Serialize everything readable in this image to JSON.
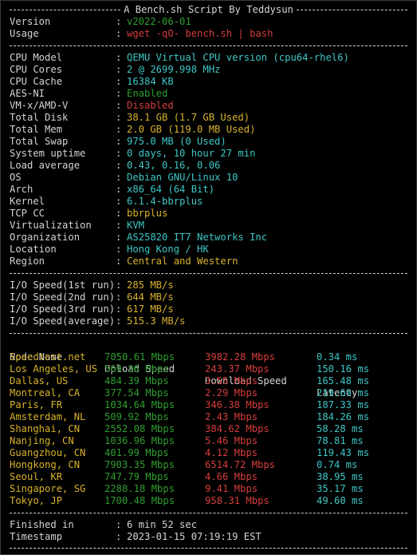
{
  "header": {
    "title": "A Bench.sh Script By Teddysun",
    "version_key": "Version",
    "version_val": "v2022-06-01",
    "usage_key": "Usage",
    "usage_val": "wget -qO- bench.sh | bash"
  },
  "system": [
    {
      "key": "CPU Model",
      "val": "QEMU Virtual CPU version (cpu64-rhel6)",
      "color": "cyan"
    },
    {
      "key": "CPU Cores",
      "val": "2 @ 2699.998 MHz",
      "color": "cyan"
    },
    {
      "key": "CPU Cache",
      "val": "16384 KB",
      "color": "cyan"
    },
    {
      "key": "AES-NI",
      "val": "Enabled",
      "color": "green"
    },
    {
      "key": "VM-x/AMD-V",
      "val": "Disabled",
      "color": "red"
    },
    {
      "key": "Total Disk",
      "val": "38.1 GB (1.7 GB Used)",
      "color": "yellow"
    },
    {
      "key": "Total Mem",
      "val": "2.0 GB (119.0 MB Used)",
      "color": "yellow"
    },
    {
      "key": "Total Swap",
      "val": "975.0 MB (0 Used)",
      "color": "cyan"
    },
    {
      "key": "System uptime",
      "val": "0 days, 10 hour 27 min",
      "color": "cyan"
    },
    {
      "key": "Load average",
      "val": "0.43, 0.16, 0.06",
      "color": "cyan"
    },
    {
      "key": "OS",
      "val": "Debian GNU/Linux 10",
      "color": "cyan"
    },
    {
      "key": "Arch",
      "val": "x86_64 (64 Bit)",
      "color": "cyan"
    },
    {
      "key": "Kernel",
      "val": "6.1.4-bbrplus",
      "color": "cyan"
    },
    {
      "key": "TCP CC",
      "val": "bbrplus",
      "color": "yellow"
    },
    {
      "key": "Virtualization",
      "val": "KVM",
      "color": "cyan"
    },
    {
      "key": "Organization",
      "val": "AS25820 IT7 Networks Inc",
      "color": "cyan"
    },
    {
      "key": "Location",
      "val": "Hong Kong / HK",
      "color": "cyan"
    },
    {
      "key": "Region",
      "val": "Central and Western",
      "color": "yellow"
    }
  ],
  "io": [
    {
      "key": "I/O Speed(1st run)",
      "val": "285 MB/s"
    },
    {
      "key": "I/O Speed(2nd run)",
      "val": "644 MB/s"
    },
    {
      "key": "I/O Speed(3rd run)",
      "val": "617 MB/s"
    },
    {
      "key": "I/O Speed(average)",
      "val": "515.3 MB/s"
    }
  ],
  "speed": {
    "headers": [
      "Node Name",
      "Upload Speed",
      "Download Speed",
      "Latency"
    ],
    "rows": [
      {
        "node": "Speedtest.net",
        "up": "7050.61 Mbps",
        "down": "3982.28 Mbps",
        "lat": "0.34 ms"
      },
      {
        "node": "Los Angeles, US",
        "up": "569.36 Mbps",
        "down": "243.37 Mbps",
        "lat": "150.16 ms"
      },
      {
        "node": "Dallas, US",
        "up": "484.39 Mbps",
        "down": "3.55 Mbps",
        "lat": "165.48 ms"
      },
      {
        "node": "Montreal, CA",
        "up": "377.54 Mbps",
        "down": "2.29 Mbps",
        "lat": "219.69 ms"
      },
      {
        "node": "Paris, FR",
        "up": "1034.64 Mbps",
        "down": "346.38 Mbps",
        "lat": "187.33 ms"
      },
      {
        "node": "Amsterdam, NL",
        "up": "509.92 Mbps",
        "down": "2.43 Mbps",
        "lat": "184.26 ms"
      },
      {
        "node": "Shanghai, CN",
        "up": "2552.08 Mbps",
        "down": "384.62 Mbps",
        "lat": "58.28 ms"
      },
      {
        "node": "Nanjing, CN",
        "up": "1036.96 Mbps",
        "down": "5.46 Mbps",
        "lat": "78.81 ms"
      },
      {
        "node": "Guangzhou, CN",
        "up": "401.99 Mbps",
        "down": "4.12 Mbps",
        "lat": "119.43 ms"
      },
      {
        "node": "Hongkong, CN",
        "up": "7903.35 Mbps",
        "down": "6514.72 Mbps",
        "lat": "0.74 ms"
      },
      {
        "node": "Seoul, KR",
        "up": "747.79 Mbps",
        "down": "4.66 Mbps",
        "lat": "38.95 ms"
      },
      {
        "node": "Singapore, SG",
        "up": "2288.18 Mbps",
        "down": "9.41 Mbps",
        "lat": "35.17 ms"
      },
      {
        "node": "Tokyo, JP",
        "up": "1700.48 Mbps",
        "down": "958.31 Mbps",
        "lat": "49.60 ms"
      }
    ]
  },
  "footer": {
    "finished_key": "Finished in",
    "finished_val": "6 min 52 sec",
    "timestamp_key": "Timestamp",
    "timestamp_val": "2023-01-15 07:19:19 EST"
  },
  "colors": {
    "cyan": "#3ec6c6",
    "green": "#2f9e2f",
    "red": "#d53d3d",
    "yellow": "#d7b22c",
    "text": "#d4d4d4",
    "background": "#000000"
  }
}
